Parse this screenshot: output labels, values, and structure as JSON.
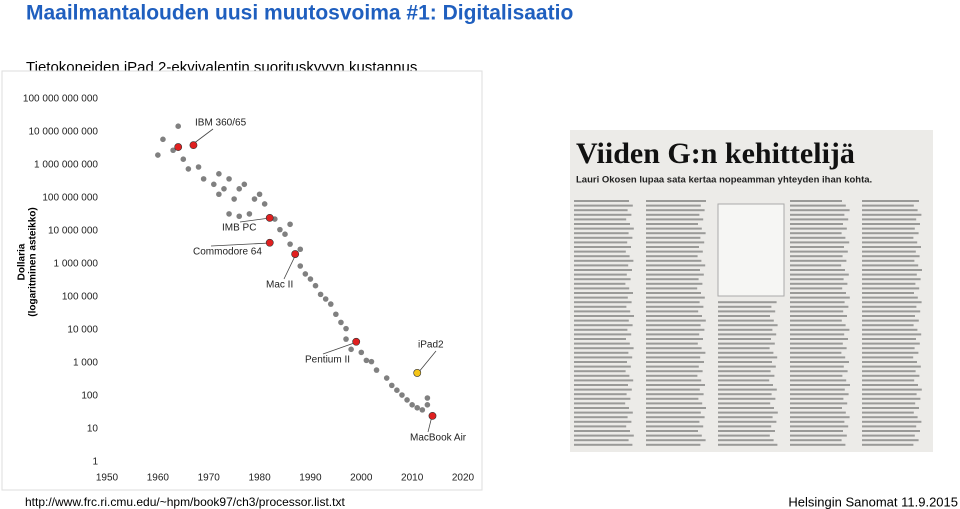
{
  "header": {
    "title": "Maailmantalouden uusi muutosvoima #1: Digitalisaatio",
    "subtitle": "Tietokoneiden iPad 2-ekvivalentin suorituskyvyn kustannus"
  },
  "chart_data": {
    "type": "scatter",
    "ylabel_lines": [
      "Dollaria",
      "(logaritminen asteikko)"
    ],
    "log_y": true,
    "xlim": [
      1950,
      2020
    ],
    "xticks": [
      1950,
      1960,
      1970,
      1980,
      1990,
      2000,
      2010,
      2020
    ],
    "ylim": [
      1,
      100000000000
    ],
    "yticks": [
      1,
      10,
      100,
      {
        "value": 1000,
        "label": "1 000"
      },
      {
        "value": 10000,
        "label": "10 000"
      },
      {
        "value": 100000,
        "label": "100 000"
      },
      {
        "value": 1000000,
        "label": "1 000 000"
      },
      {
        "value": 10000000,
        "label": "10 000 000"
      },
      {
        "value": 100000000,
        "label": "100 000 000"
      },
      {
        "value": 1000000000,
        "label": "1 000 000 000"
      },
      {
        "value": 10000000000,
        "label": "10 000 000 000"
      },
      {
        "value": 100000000000,
        "label": "100 000 000 000"
      }
    ],
    "series": [
      {
        "color": "#808080",
        "x": [
          1960,
          1961,
          1963,
          1964,
          1965,
          1966,
          1968,
          1969,
          1971,
          1972,
          1972,
          1973,
          1974,
          1975,
          1976,
          1977,
          1974,
          1976,
          1978,
          1979,
          1980,
          1981,
          1983,
          1984,
          1985,
          1986,
          1986,
          1988,
          1988,
          1989,
          1990,
          1991,
          1992,
          1993,
          1994,
          1995,
          1996,
          1997,
          1997,
          1998,
          2000,
          2001,
          2002,
          2003,
          2005,
          2006,
          2007,
          2008,
          2009,
          2010,
          2011,
          2012,
          2013,
          2013
        ],
        "values": [
          2000000000,
          6000000000,
          2800000000,
          15000000000,
          1500000000,
          760000000,
          870000000,
          380000000,
          260000000,
          540000000,
          130000000,
          190000000,
          380000000,
          93000000,
          190000000,
          260000000,
          33000000,
          28000000,
          33000000,
          93000000,
          130000000,
          66000000,
          23000000,
          11000000,
          8000000,
          16000000,
          4000000,
          2800000,
          870000,
          500000,
          350000,
          220000,
          120000,
          87000,
          61000,
          30000,
          17000,
          11000,
          5300,
          2600,
          2100,
          1200,
          1100,
          610,
          350,
          210,
          150,
          107,
          76,
          54,
          44,
          38,
          54,
          87
        ]
      },
      {
        "color": "#e02020",
        "x": [
          1964,
          1967,
          1982,
          1982,
          1987,
          1999,
          2014
        ],
        "values": [
          3500000000,
          4000000000,
          25000000,
          4400000,
          2000000,
          4400,
          25
        ]
      },
      {
        "color": "#f5c518",
        "x": [
          2011
        ],
        "values": [
          500
        ]
      }
    ],
    "annotations": [
      "IBM 360/65",
      "IMB PC",
      "Commodore 64",
      "Mac II",
      "Pentium II",
      "iPad2",
      "MacBook Air"
    ]
  },
  "newspaper": {
    "headline": "Viiden G:n kehittelijä",
    "deck": "Lauri Okosen lupaa sata kertaa nopeamman yhteyden ihan kohta."
  },
  "footer": {
    "source": "http://www.frc.ri.cmu.edu/~hpm/book97/ch3/processor.list.txt",
    "credit": "Helsingin Sanomat 11.9.2015"
  }
}
